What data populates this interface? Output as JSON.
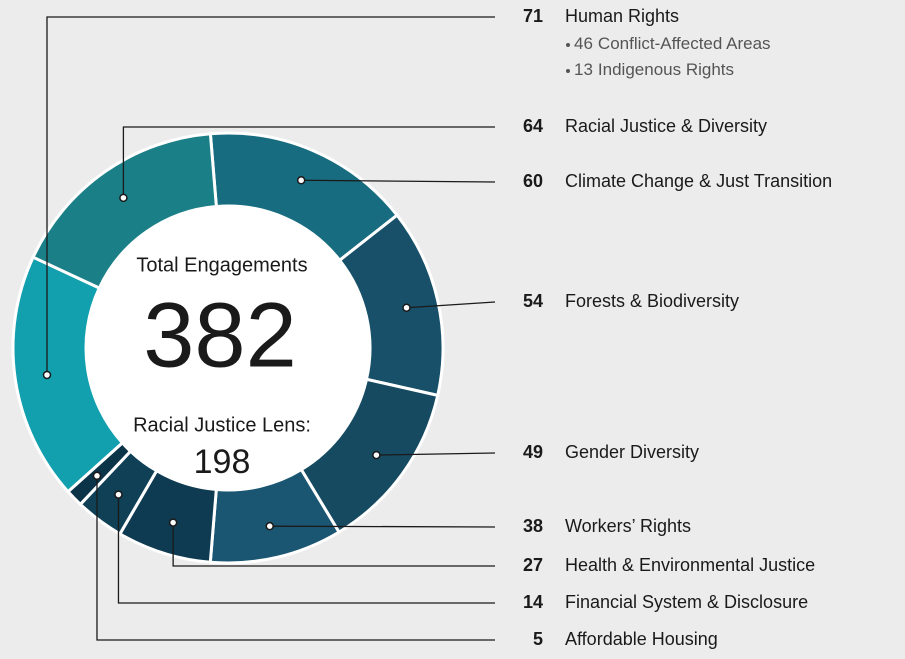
{
  "chart_data": {
    "type": "donut",
    "center_title": "Total Engagements",
    "total": 382,
    "lens_label": "Racial Justice Lens:",
    "lens_value": 198,
    "categories": [
      "Human Rights",
      "Racial Justice & Diversity",
      "Climate Change & Just Transition",
      "Forests & Biodiversity",
      "Gender Diversity",
      "Workers’ Rights",
      "Health  & Environmental Justice",
      "Financial System & Disclosure",
      "Affordable Housing"
    ],
    "values": [
      71,
      64,
      60,
      54,
      49,
      38,
      27,
      14,
      5
    ],
    "colors": [
      "#12a0ae",
      "#1a7f87",
      "#186c80",
      "#175068",
      "#164a61",
      "#1a5671",
      "#0e3b51",
      "#0f4056",
      "#0c3449"
    ],
    "sub_items": [
      {
        "value": 46,
        "label": "Conflict-Affected Areas"
      },
      {
        "value": 13,
        "label": "Indigenous Rights"
      }
    ]
  }
}
